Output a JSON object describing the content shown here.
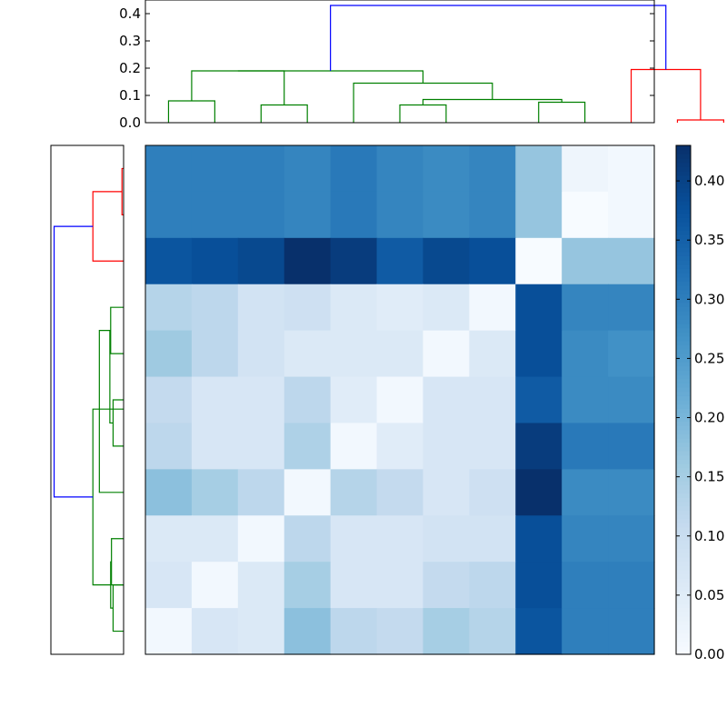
{
  "chart_data": [
    {
      "type": "heatmap",
      "rows": 11,
      "cols": 11,
      "values": [
        [
          0.3,
          0.3,
          0.3,
          0.29,
          0.31,
          0.29,
          0.28,
          0.29,
          0.17,
          0.02,
          0.01
        ],
        [
          0.3,
          0.3,
          0.3,
          0.29,
          0.31,
          0.29,
          0.28,
          0.29,
          0.17,
          0.0,
          0.01
        ],
        [
          0.37,
          0.38,
          0.39,
          0.43,
          0.41,
          0.36,
          0.39,
          0.38,
          0.0,
          0.17,
          0.17
        ],
        [
          0.13,
          0.12,
          0.08,
          0.09,
          0.06,
          0.05,
          0.06,
          0.01,
          0.38,
          0.29,
          0.29
        ],
        [
          0.16,
          0.12,
          0.08,
          0.06,
          0.06,
          0.06,
          0.01,
          0.06,
          0.38,
          0.28,
          0.27
        ],
        [
          0.11,
          0.07,
          0.07,
          0.12,
          0.05,
          0.01,
          0.07,
          0.07,
          0.36,
          0.28,
          0.28
        ],
        [
          0.12,
          0.07,
          0.07,
          0.14,
          0.01,
          0.05,
          0.07,
          0.07,
          0.41,
          0.31,
          0.31
        ],
        [
          0.18,
          0.15,
          0.12,
          0.01,
          0.13,
          0.11,
          0.07,
          0.09,
          0.43,
          0.28,
          0.28
        ],
        [
          0.06,
          0.06,
          0.01,
          0.12,
          0.07,
          0.07,
          0.08,
          0.08,
          0.38,
          0.29,
          0.29
        ],
        [
          0.07,
          0.01,
          0.06,
          0.15,
          0.07,
          0.07,
          0.11,
          0.12,
          0.38,
          0.3,
          0.3
        ],
        [
          0.01,
          0.07,
          0.06,
          0.18,
          0.12,
          0.11,
          0.15,
          0.13,
          0.37,
          0.3,
          0.3
        ]
      ],
      "colormap": "Blues",
      "colormap_stops": [
        "#f7fbff",
        "#deebf7",
        "#c6dbef",
        "#9ecae1",
        "#6baed6",
        "#4292c6",
        "#2171b5",
        "#08519c",
        "#08306b"
      ],
      "colorbar": {
        "range": [
          0.0,
          0.43
        ],
        "ticks": [
          0.0,
          0.05,
          0.1,
          0.15,
          0.2,
          0.25,
          0.3,
          0.35,
          0.4
        ],
        "tick_labels": [
          "0.00",
          "0.05",
          "0.10",
          "0.15",
          "0.20",
          "0.25",
          "0.30",
          "0.35",
          "0.40"
        ]
      },
      "title": "",
      "xlabel": "",
      "ylabel": ""
    },
    {
      "type": "dendrogram",
      "orientation": "top",
      "leaf_count": 11,
      "ylim": [
        0.0,
        0.45
      ],
      "ticks": [
        0.0,
        0.1,
        0.2,
        0.3,
        0.4
      ],
      "tick_labels": [
        "0.0",
        "0.1",
        "0.2",
        "0.3",
        "0.4"
      ],
      "links": [
        {
          "left": 0,
          "right": 1,
          "height": 0.08,
          "color": "#008000"
        },
        {
          "left": 2,
          "right": 3,
          "height": 0.065,
          "color": "#008000"
        },
        {
          "left": 0.5,
          "right": 2.5,
          "height": 0.19,
          "color": "#008000"
        },
        {
          "left": 5,
          "right": 6,
          "height": 0.065,
          "color": "#008000"
        },
        {
          "left": 8,
          "right": 9,
          "height": 0.075,
          "color": "#008000"
        },
        {
          "left": 5.5,
          "right": 8.5,
          "height": 0.085,
          "color": "#008000"
        },
        {
          "left": 4,
          "right": 7,
          "height": 0.145,
          "color": "#008000"
        },
        {
          "left": 1.5,
          "right": 5.5,
          "height": 0.19,
          "color": "#008000"
        },
        {
          "left": 11,
          "right": 12,
          "height": 0.01,
          "color": "#ff0000"
        },
        {
          "left": 10,
          "right": 11.5,
          "height": 0.195,
          "color": "#ff0000"
        },
        {
          "left": 3.5,
          "right": 10.75,
          "height": 0.43,
          "color": "#0000ff"
        }
      ]
    },
    {
      "type": "dendrogram",
      "orientation": "left",
      "leaf_count": 11,
      "xlim": [
        0.0,
        0.45
      ],
      "links": [
        {
          "left": 0,
          "right": 1,
          "height": 0.01,
          "color": "#ff0000"
        },
        {
          "left": 0.5,
          "right": 2,
          "height": 0.19,
          "color": "#ff0000"
        },
        {
          "left": 3,
          "right": 4,
          "height": 0.08,
          "color": "#008000"
        },
        {
          "left": 5,
          "right": 6,
          "height": 0.065,
          "color": "#008000"
        },
        {
          "left": 3.5,
          "right": 5.5,
          "height": 0.085,
          "color": "#008000"
        },
        {
          "left": 3.5,
          "right": 7,
          "height": 0.15,
          "color": "#008000"
        },
        {
          "left": 8,
          "right": 9,
          "height": 0.075,
          "color": "#008000"
        },
        {
          "left": 9,
          "right": 10,
          "height": 0.065,
          "color": "#008000"
        },
        {
          "left": 8.5,
          "right": 9.5,
          "height": 0.08,
          "color": "#008000"
        },
        {
          "left": 5.2,
          "right": 9,
          "height": 0.19,
          "color": "#008000"
        },
        {
          "left": 1.25,
          "right": 7.1,
          "height": 0.43,
          "color": "#0000ff"
        }
      ]
    }
  ]
}
